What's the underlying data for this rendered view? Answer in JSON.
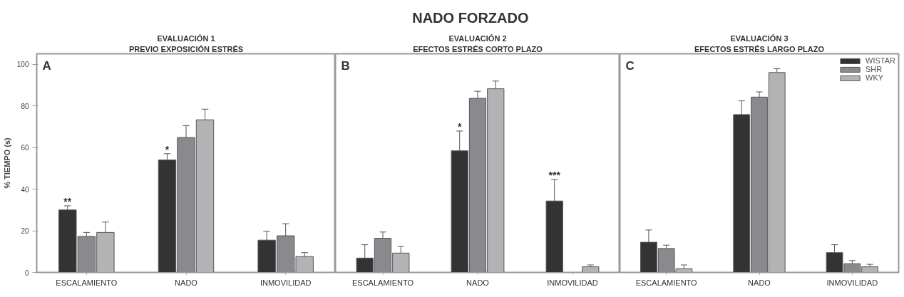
{
  "chart_data": [
    {
      "type": "bar",
      "title": "EVALUACIÓN 1",
      "subtitle": "PREVIO EXPOSICIÓN ESTRÉS",
      "ylabel": "% TIEMPO (s)",
      "categories": [
        "ESCALAMIENTO",
        "NADO",
        "INMOVILIDAD"
      ],
      "series": [
        {
          "color": "#333333",
          "values": [
            30,
            54,
            15.5
          ],
          "errors": [
            2,
            3,
            4.3
          ],
          "value_labels": [
            "**",
            "*",
            null
          ]
        },
        {
          "color": "#8a8a8e",
          "values": [
            17.3,
            64.8,
            17.6
          ],
          "errors": [
            1.9,
            5.7,
            5.8
          ]
        },
        {
          "color": "#b3b3b5",
          "values": [
            19.2,
            73.3,
            7.6
          ],
          "errors": [
            5,
            5.1,
            1.9
          ]
        }
      ],
      "ylim": [
        0,
        105
      ],
      "yticks": [
        0,
        20,
        40,
        60,
        80,
        100
      ],
      "annotations": [
        "A",
        "NADO FORZADO"
      ]
    },
    {
      "type": "bar",
      "title": "EVALUACIÓN 2",
      "subtitle": "EFECTOS ESTRÉS CORTO PLAZO",
      "categories": [
        "ESCALAMIENTO",
        "NADO",
        "INMOVILIDAD"
      ],
      "series": [
        {
          "color": "#333333",
          "values": [
            6.9,
            58.4,
            34.3
          ],
          "errors": [
            6.4,
            9.5,
            10.3
          ],
          "value_labels": [
            null,
            "*",
            "***"
          ]
        },
        {
          "color": "#8a8a8e",
          "values": [
            16.4,
            83.6,
            null
          ],
          "errors": [
            3,
            3.4,
            null
          ]
        },
        {
          "color": "#b3b3b5",
          "values": [
            9.3,
            88.2,
            2.7
          ],
          "errors": [
            3.1,
            3.7,
            0.9
          ]
        }
      ],
      "ylim": [
        0,
        105
      ],
      "tick_labels": "x",
      "annotations": [
        "B"
      ]
    },
    {
      "type": "bar",
      "title": "EVALUACIÓN 3",
      "subtitle": "EFECTOS ESTRÉS LARGO PLAZO",
      "categories": [
        "ESCALAMIENTO",
        "NADO",
        "INMOVILIDAD"
      ],
      "series": [
        {
          "name": "WISTAR",
          "color": "#333333",
          "values": [
            14.5,
            75.8,
            9.5
          ],
          "errors": [
            5.9,
            6.6,
            3.8
          ]
        },
        {
          "name": "SHR",
          "color": "#8a8a8e",
          "values": [
            11.5,
            84.2,
            4.2
          ],
          "errors": [
            1.6,
            2.5,
            1.5
          ]
        },
        {
          "name": "WKY",
          "color": "#b3b3b5",
          "values": [
            1.8,
            96,
            2.7
          ],
          "errors": [
            1.8,
            1.8,
            1.2
          ]
        }
      ],
      "ylim": [
        0,
        105
      ],
      "tick_labels": "x",
      "legend": "top right",
      "annotations": [
        "C"
      ]
    }
  ]
}
